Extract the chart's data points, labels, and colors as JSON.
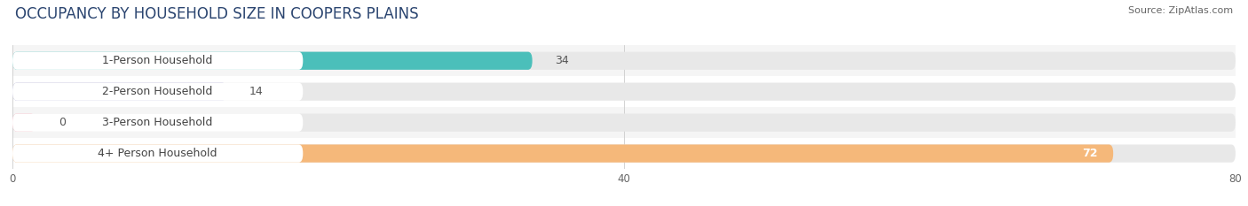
{
  "title": "OCCUPANCY BY HOUSEHOLD SIZE IN COOPERS PLAINS",
  "source": "Source: ZipAtlas.com",
  "categories": [
    "1-Person Household",
    "2-Person Household",
    "3-Person Household",
    "4+ Person Household"
  ],
  "values": [
    34,
    14,
    0,
    72
  ],
  "bar_colors": [
    "#4BBFBA",
    "#A9A8D4",
    "#F2A0B0",
    "#F5B87A"
  ],
  "xlim": [
    0,
    80
  ],
  "xticks": [
    0,
    40,
    80
  ],
  "bg_color": "#ffffff",
  "row_bg_colors": [
    "#f5f5f5",
    "#ffffff",
    "#f5f5f5",
    "#ffffff"
  ],
  "bar_track_color": "#e8e8e8",
  "label_pill_color": "#ffffff",
  "label_text_color": "#444444",
  "value_color_outside": "#555555",
  "value_color_inside": "#ffffff",
  "title_fontsize": 12,
  "source_fontsize": 8,
  "label_fontsize": 9,
  "value_fontsize": 9,
  "bar_height": 0.58,
  "inside_threshold": 50
}
